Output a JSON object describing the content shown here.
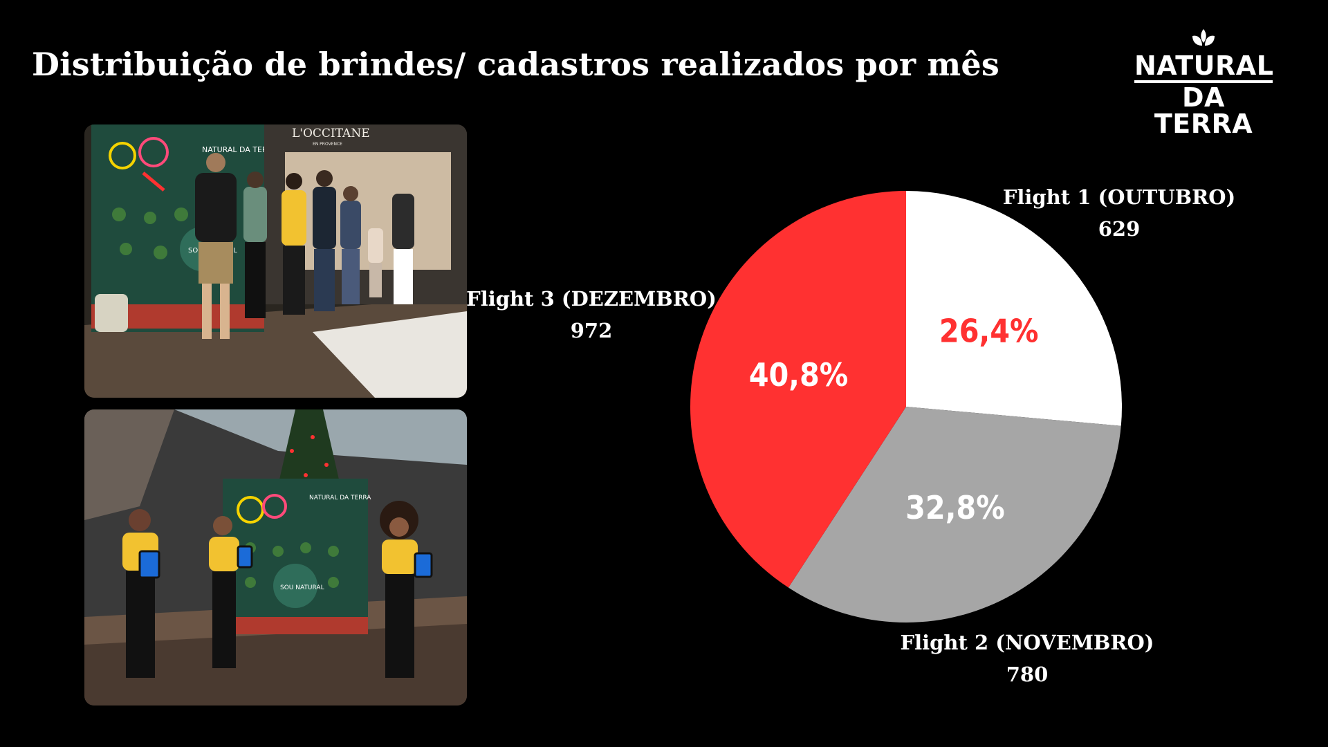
{
  "page": {
    "title": "Distribuição de brindes/ cadastros realizados  por mês"
  },
  "logo": {
    "line1": "NATURAL",
    "line2": "DA TERRA",
    "icon": "sprout-icon"
  },
  "photos": [
    {
      "sign_brand": "L'OCCITANE",
      "sign_sub": "EN PROVENCE",
      "booth_logo": "NATURAL DA TERRA",
      "booth_text": "SOU NATURAL"
    },
    {
      "booth_logo": "NATURAL DA TERRA",
      "booth_text": "SOU NATURAL"
    }
  ],
  "colors": {
    "background": "#000000",
    "flight1": "#ffffff",
    "flight2": "#a6a6a6",
    "flight3": "#ff3131",
    "flight1_pct_text": "#ff3131",
    "pct_text": "#ffffff"
  },
  "chart_data": {
    "type": "pie",
    "start_angle_deg": 0,
    "direction": "clockwise",
    "slices": [
      {
        "label": "Flight 1 (OUTUBRO)",
        "value": 629,
        "value_label": "629",
        "percent_label": "26,4%"
      },
      {
        "label": "Flight 2 (NOVEMBRO)",
        "value": 780,
        "value_label": "780",
        "percent_label": "32,8%"
      },
      {
        "label": "Flight 3 (DEZEMBRO)",
        "value": 972,
        "value_label": "972",
        "percent_label": "40,8%"
      }
    ]
  }
}
